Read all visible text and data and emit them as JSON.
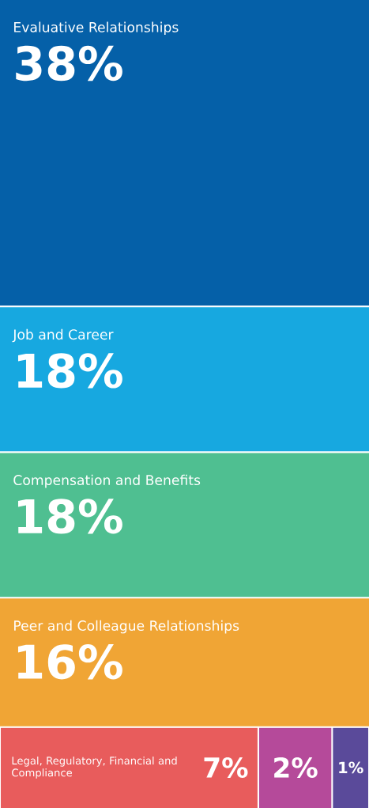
{
  "chart_data": {
    "type": "other",
    "categories": [
      "Evaluative Relationships",
      "Job and Career",
      "Compensation and Benefits",
      "Peer and Colleague Relationships",
      "Legal, Regulatory, Financial and Compliance",
      null,
      null
    ],
    "values": [
      38,
      18,
      18,
      16,
      7,
      2,
      1
    ],
    "value_labels": [
      "38%",
      "18%",
      "18%",
      "16%",
      "7%",
      "2%",
      "1%"
    ],
    "colors": [
      "#0560a8",
      "#17a8e0",
      "#4fbf91",
      "#f0a535",
      "#e85c5c",
      "#b54a9a",
      "#5a4a9a"
    ]
  }
}
